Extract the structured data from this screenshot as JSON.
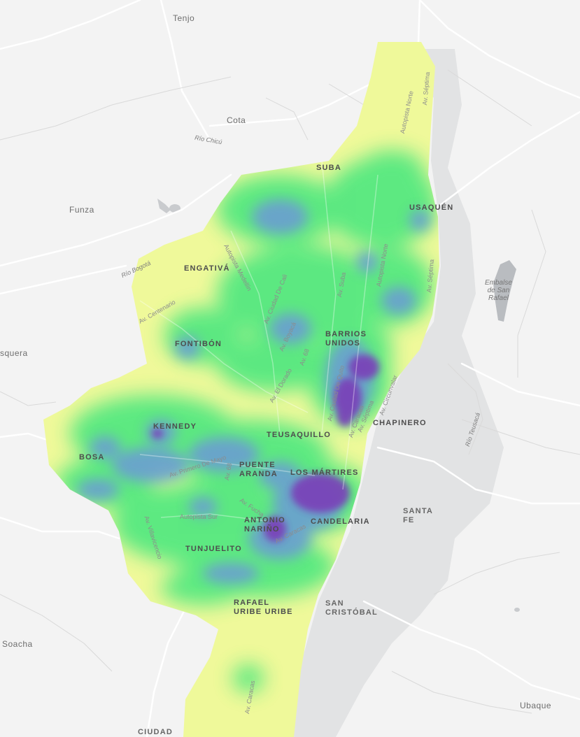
{
  "map": {
    "colors": {
      "background": "#f3f3f3",
      "mountains": "#e2e3e4",
      "roads": "#ffffff",
      "water": "#b9bcc0",
      "heat_low": "#eff99a",
      "heat_mid": "#47e57a",
      "heat_high": "#6c8fd8",
      "heat_max": "#7a3fb8"
    },
    "towns": {
      "tenjo": "Tenjo",
      "cota": "Cota",
      "funza": "Funza",
      "mosquera": "squera",
      "soacha": "Soacha",
      "ubaque": "Ubaque",
      "ciudad": "CIUDAD"
    },
    "districts": {
      "suba": "SUBA",
      "usaquen": "USAQUÉN",
      "engativa": "ENGATIVÁ",
      "fontibon": "FONTIBÓN",
      "barrios_unidos_1": "BARRIOS",
      "barrios_unidos_2": "UNIDOS",
      "chapinero": "CHAPINERO",
      "kennedy": "KENNEDY",
      "teusaquillo": "TEUSAQUILLO",
      "bosa": "BOSA",
      "puente_aranda_1": "PUENTE",
      "puente_aranda_2": "ARANDA",
      "los_martires": "LOS MÁRTIRES",
      "santa_fe_1": "SANTA",
      "santa_fe_2": "FE",
      "antonio_narino_1": "ANTONIO",
      "antonio_narino_2": "NARIÑO",
      "candelaria": "CANDELARIA",
      "tunjuelito": "TUNJUELITO",
      "rafael_uribe_1": "RAFAEL",
      "rafael_uribe_2": "URIBE URIBE",
      "san_cristobal_1": "SAN",
      "san_cristobal_2": "CRISTÓBAL"
    },
    "water_labels": {
      "embalse_1": "Embalse",
      "embalse_2": "de San",
      "embalse_3": "Rafael",
      "rio_chicu": "Río Chicú",
      "rio_bogota": "Río Bogotá",
      "rio_teusaca": "Río Teusacá"
    },
    "roads": {
      "autopista_norte_1": "Autopista Norte",
      "av_septima_1": "Av. Séptima",
      "autopista_medellin": "Autopista Medellín",
      "av_ciudad_de_cali": "Av. Ciudad De Cali",
      "av_suba": "Av. Suba",
      "autopista_norte_2": "Autopista Norte",
      "av_septima_2": "Av. Séptima",
      "av_centenario": "Av. Centenario",
      "av_boyaca": "Av. Boyacá",
      "av_68": "Av. 68",
      "av_el_dorado": "Av. El Dorado",
      "av_ciudad_de_quito": "Av. Ciudad De Quito",
      "av_caracas_1": "Av. Caracas",
      "av_septima_3": "Av. Séptima",
      "av_circunvalar": "Av. Circunvalar",
      "av_primero_de_mayo": "Av. Primero De Mayo",
      "av_68_2": "Av. 68",
      "av_fucha": "Av. Fucha",
      "autopista_sur": "Autopista Sur",
      "av_villavicencio": "Av. Villavicencio",
      "av_caracas_2": "Av. Caracas",
      "av_caracas_3": "Av. Caracas"
    }
  }
}
